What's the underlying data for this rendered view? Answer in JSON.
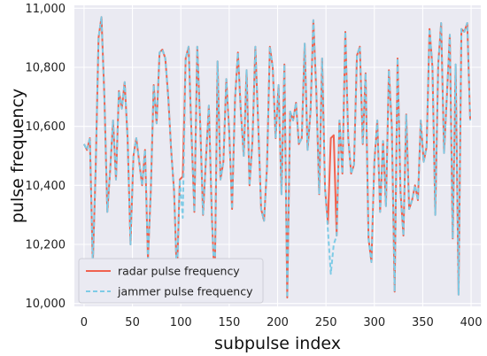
{
  "chart_data": {
    "type": "line",
    "title": "",
    "xlabel": "subpulse index",
    "ylabel": "pulse frequency",
    "xlim": [
      -10,
      410
    ],
    "ylim": [
      9990,
      11010
    ],
    "xticks": [
      0,
      50,
      100,
      150,
      200,
      250,
      300,
      350,
      400
    ],
    "yticks": [
      10000,
      10200,
      10400,
      10600,
      10800,
      11000
    ],
    "ytick_labels": [
      "10,000",
      "10,200",
      "10,400",
      "10,600",
      "10,800",
      "11,000"
    ],
    "grid": true,
    "legend_position": "lower-left",
    "colors": {
      "background": "#eaeaf2",
      "grid": "#ffffff",
      "radar": "#f0624f",
      "jammer": "#7ecbe6"
    },
    "series": [
      {
        "name": "radar pulse frequency",
        "style": "solid",
        "x": [
          0,
          3,
          6,
          9,
          12,
          15,
          18,
          21,
          24,
          27,
          30,
          33,
          36,
          39,
          42,
          45,
          48,
          51,
          54,
          57,
          60,
          63,
          66,
          69,
          72,
          75,
          78,
          81,
          84,
          87,
          90,
          93,
          96,
          99,
          102,
          105,
          108,
          111,
          114,
          117,
          120,
          123,
          126,
          129,
          132,
          135,
          138,
          141,
          144,
          147,
          150,
          153,
          156,
          159,
          162,
          165,
          168,
          171,
          174,
          177,
          180,
          183,
          186,
          189,
          192,
          195,
          198,
          201,
          204,
          207,
          210,
          213,
          216,
          219,
          222,
          225,
          228,
          231,
          234,
          237,
          240,
          243,
          246,
          249,
          252,
          255,
          258,
          261,
          264,
          267,
          270,
          273,
          276,
          279,
          282,
          285,
          288,
          291,
          294,
          297,
          300,
          303,
          306,
          309,
          312,
          315,
          318,
          321,
          324,
          327,
          330,
          333,
          336,
          339,
          342,
          345,
          348,
          351,
          354,
          357,
          360,
          363,
          366,
          369,
          372,
          375,
          378,
          381,
          384,
          387,
          390,
          393,
          396,
          399
        ],
        "values": [
          10540,
          10520,
          10560,
          10130,
          10450,
          10900,
          10970,
          10700,
          10310,
          10450,
          10620,
          10420,
          10720,
          10660,
          10750,
          10560,
          10200,
          10500,
          10560,
          10480,
          10400,
          10520,
          10150,
          10380,
          10740,
          10610,
          10850,
          10860,
          10830,
          10700,
          10520,
          10380,
          10090,
          10420,
          10430,
          10830,
          10870,
          10580,
          10310,
          10870,
          10610,
          10300,
          10490,
          10670,
          10300,
          10060,
          10820,
          10420,
          10480,
          10760,
          10580,
          10320,
          10690,
          10850,
          10650,
          10500,
          10790,
          10400,
          10550,
          10870,
          10610,
          10320,
          10280,
          10460,
          10870,
          10800,
          10560,
          10740,
          10370,
          10810,
          10020,
          10650,
          10620,
          10680,
          10540,
          10560,
          10880,
          10520,
          10650,
          10960,
          10720,
          10370,
          10830,
          10390,
          10270,
          10560,
          10570,
          10230,
          10620,
          10440,
          10920,
          10560,
          10440,
          10470,
          10840,
          10870,
          10540,
          10780,
          10220,
          10140,
          10480,
          10620,
          10310,
          10550,
          10330,
          10790,
          10600,
          10040,
          10830,
          10380,
          10230,
          10640,
          10320,
          10350,
          10400,
          10350,
          10620,
          10480,
          10530,
          10930,
          10800,
          10300,
          10810,
          10950,
          10510,
          10710,
          10910,
          10220,
          10810,
          10030,
          10930,
          10920,
          10950,
          10620
        ]
      },
      {
        "name": "jammer pulse frequency",
        "style": "dashed",
        "x": [
          0,
          3,
          6,
          9,
          12,
          15,
          18,
          21,
          24,
          27,
          30,
          33,
          36,
          39,
          42,
          45,
          48,
          51,
          54,
          57,
          60,
          63,
          66,
          69,
          72,
          75,
          78,
          81,
          84,
          87,
          90,
          93,
          96,
          99,
          102,
          105,
          108,
          111,
          114,
          117,
          120,
          123,
          126,
          129,
          132,
          135,
          138,
          141,
          144,
          147,
          150,
          153,
          156,
          159,
          162,
          165,
          168,
          171,
          174,
          177,
          180,
          183,
          186,
          189,
          192,
          195,
          198,
          201,
          204,
          207,
          210,
          213,
          216,
          219,
          222,
          225,
          228,
          231,
          234,
          237,
          240,
          243,
          246,
          249,
          252,
          255,
          258,
          261,
          264,
          267,
          270,
          273,
          276,
          279,
          282,
          285,
          288,
          291,
          294,
          297,
          300,
          303,
          306,
          309,
          312,
          315,
          318,
          321,
          324,
          327,
          330,
          333,
          336,
          339,
          342,
          345,
          348,
          351,
          354,
          357,
          360,
          363,
          366,
          369,
          372,
          375,
          378,
          381,
          384,
          387,
          390,
          393,
          396,
          399
        ],
        "values": [
          10540,
          10520,
          10560,
          10130,
          10450,
          10900,
          10970,
          10700,
          10310,
          10450,
          10620,
          10420,
          10720,
          10660,
          10750,
          10560,
          10200,
          10500,
          10560,
          10480,
          10400,
          10520,
          10150,
          10380,
          10740,
          10610,
          10850,
          10860,
          10830,
          10700,
          10520,
          10380,
          10090,
          10420,
          10290,
          10830,
          10870,
          10580,
          10310,
          10870,
          10610,
          10300,
          10490,
          10670,
          10300,
          10060,
          10820,
          10420,
          10480,
          10760,
          10580,
          10320,
          10690,
          10850,
          10650,
          10500,
          10790,
          10400,
          10550,
          10870,
          10610,
          10320,
          10280,
          10460,
          10870,
          10800,
          10560,
          10740,
          10370,
          10810,
          10020,
          10650,
          10620,
          10680,
          10540,
          10560,
          10880,
          10520,
          10650,
          10960,
          10720,
          10370,
          10830,
          10390,
          10250,
          10100,
          10200,
          10230,
          10620,
          10440,
          10920,
          10560,
          10440,
          10470,
          10840,
          10870,
          10540,
          10780,
          10220,
          10140,
          10480,
          10620,
          10310,
          10550,
          10330,
          10790,
          10600,
          10040,
          10830,
          10380,
          10230,
          10640,
          10320,
          10350,
          10400,
          10350,
          10620,
          10480,
          10530,
          10930,
          10800,
          10300,
          10810,
          10950,
          10510,
          10710,
          10910,
          10220,
          10810,
          10030,
          10930,
          10920,
          10950,
          10620
        ]
      }
    ]
  }
}
